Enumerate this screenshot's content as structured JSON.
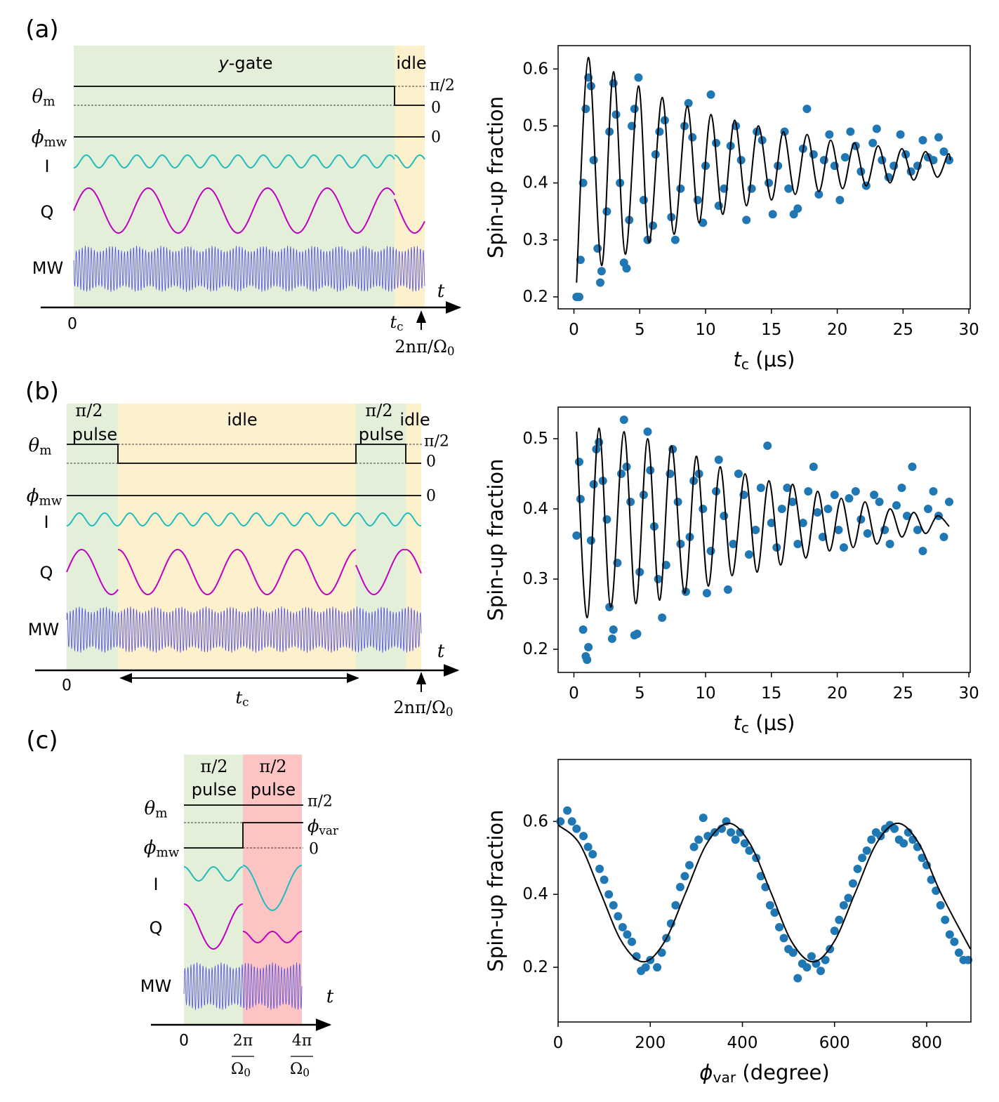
{
  "diagrams": [
    {
      "panel": "(a)",
      "gate": {
        "i": "y",
        "rest": "-gate"
      },
      "idle": "idle",
      "theta": {
        "base": "θ",
        "sub": "m"
      },
      "phi": {
        "base": "ϕ",
        "sub": "mw"
      },
      "I": "I",
      "Q": "Q",
      "MW": "MW",
      "t": "t",
      "zero": "0",
      "tc": {
        "base": "t",
        "sub": "c"
      },
      "end": {
        "base": "2nπ/Ω",
        "sub": "0"
      },
      "right": [
        "π/2",
        "0",
        "0"
      ]
    },
    {
      "panel": "(b)",
      "regions": [
        [
          "π/2",
          "pulse"
        ],
        [
          "idle"
        ],
        [
          "π/2",
          "pulse"
        ],
        [
          "idle"
        ]
      ],
      "theta": {
        "base": "θ",
        "sub": "m"
      },
      "phi": {
        "base": "ϕ",
        "sub": "mw"
      },
      "I": "I",
      "Q": "Q",
      "MW": "MW",
      "t": "t",
      "zero": "0",
      "tc": {
        "base": "t",
        "sub": "c"
      },
      "end": {
        "base": "2nπ/Ω",
        "sub": "0"
      },
      "right": [
        "π/2",
        "0",
        "0"
      ]
    },
    {
      "panel": "(c)",
      "regions": [
        [
          "π/2",
          "pulse"
        ],
        [
          "π/2",
          "pulse"
        ]
      ],
      "theta": {
        "base": "θ",
        "sub": "m"
      },
      "phi": {
        "base": "ϕ",
        "sub": "mw"
      },
      "I": "I",
      "Q": "Q",
      "MW": "MW",
      "t": "t",
      "ticks": [
        "0",
        {
          "num": "2π",
          "den": {
            "base": "Ω",
            "sub": "0"
          }
        },
        {
          "num": "4π",
          "den": {
            "base": "Ω",
            "sub": "0"
          }
        }
      ],
      "right": [
        "π/2",
        {
          "base": "ϕ",
          "sub": "var"
        },
        "0"
      ]
    }
  ],
  "chart_data": [
    {
      "type": "scatter",
      "ylabel": "Spin-up fraction",
      "xlabel": {
        "base": "t",
        "sub": "c",
        "rest": " (μs)"
      },
      "xlim": [
        -1.2,
        30.1
      ],
      "xticks": [
        0,
        5,
        10,
        15,
        20,
        25,
        30
      ],
      "ylim": [
        0.179,
        0.641
      ],
      "yticks": [
        0.2,
        0.3,
        0.4,
        0.5,
        0.6
      ],
      "points": {
        "color": "#1f77b4",
        "x": [
          0.2,
          0.4,
          0.5,
          0.7,
          0.9,
          1.1,
          1.3,
          1.5,
          1.8,
          2.1,
          2.0,
          2.5,
          2.7,
          3.0,
          3.2,
          3.5,
          3.8,
          4.0,
          4.2,
          4.4,
          4.6,
          4.9,
          5.3,
          5.6,
          6.0,
          6.2,
          6.5,
          6.9,
          7.4,
          7.7,
          8.1,
          8.4,
          8.7,
          9.0,
          9.4,
          9.8,
          10.0,
          10.4,
          10.8,
          11.0,
          11.4,
          11.9,
          12.3,
          12.7,
          13.1,
          13.5,
          13.9,
          14.3,
          14.8,
          15.1,
          15.5,
          16.0,
          16.3,
          16.7,
          17.0,
          17.4,
          17.7,
          18.2,
          18.6,
          19.0,
          19.4,
          19.8,
          20.2,
          20.6,
          21.0,
          21.4,
          21.8,
          22.2,
          22.7,
          23.0,
          23.4,
          23.9,
          24.3,
          24.8,
          25.2,
          25.6,
          26.1,
          26.5,
          26.9,
          27.3,
          27.7,
          28.1,
          28.5
        ],
        "y": [
          0.2,
          0.2,
          0.265,
          0.4,
          0.53,
          0.585,
          0.57,
          0.44,
          0.285,
          0.245,
          0.225,
          0.35,
          0.49,
          0.575,
          0.52,
          0.4,
          0.26,
          0.25,
          0.335,
          0.5,
          0.53,
          0.585,
          0.37,
          0.3,
          0.325,
          0.45,
          0.49,
          0.51,
          0.34,
          0.3,
          0.39,
          0.5,
          0.54,
          0.48,
          0.37,
          0.33,
          0.43,
          0.555,
          0.47,
          0.36,
          0.39,
          0.465,
          0.5,
          0.44,
          0.335,
          0.39,
          0.49,
          0.475,
          0.4,
          0.345,
          0.43,
          0.49,
          0.39,
          0.345,
          0.355,
          0.46,
          0.53,
          0.45,
          0.38,
          0.44,
          0.485,
          0.43,
          0.37,
          0.445,
          0.49,
          0.465,
          0.42,
          0.395,
          0.47,
          0.495,
          0.44,
          0.41,
          0.43,
          0.485,
          0.45,
          0.42,
          0.43,
          0.475,
          0.445,
          0.44,
          0.48,
          0.455,
          0.44
        ]
      },
      "fit": {
        "color": "#000000",
        "x": [
          0.2,
          1.1,
          2.1,
          3.0,
          3.9,
          4.9,
          5.7,
          6.7,
          7.6,
          8.6,
          9.5,
          10.4,
          11.3,
          12.2,
          13.1,
          14.0,
          15.0,
          15.9,
          16.8,
          17.7,
          18.6,
          19.5,
          20.4,
          21.3,
          22.2,
          23.1,
          24.0,
          24.9,
          25.8,
          26.7,
          27.6,
          28.4,
          28.6
        ],
        "y": [
          0.225,
          0.62,
          0.255,
          0.595,
          0.275,
          0.57,
          0.295,
          0.55,
          0.31,
          0.535,
          0.33,
          0.52,
          0.345,
          0.51,
          0.36,
          0.5,
          0.37,
          0.49,
          0.38,
          0.485,
          0.385,
          0.475,
          0.39,
          0.47,
          0.395,
          0.465,
          0.4,
          0.46,
          0.405,
          0.455,
          0.41,
          0.45,
          0.44
        ]
      }
    },
    {
      "type": "scatter",
      "ylabel": "Spin-up fraction",
      "xlabel": {
        "base": "t",
        "sub": "c",
        "rest": " (μs)"
      },
      "xlim": [
        -1.2,
        30.1
      ],
      "xticks": [
        0,
        5,
        10,
        15,
        20,
        25,
        30
      ],
      "ylim": [
        0.167,
        0.545
      ],
      "yticks": [
        0.2,
        0.3,
        0.4,
        0.5
      ],
      "points": {
        "color": "#1f77b4",
        "x": [
          0.2,
          0.4,
          0.5,
          0.7,
          0.9,
          1.0,
          1.1,
          1.3,
          1.5,
          1.7,
          1.9,
          2.2,
          2.5,
          2.7,
          2.9,
          3.0,
          3.3,
          3.6,
          3.8,
          4.0,
          4.3,
          4.6,
          4.8,
          5.0,
          5.3,
          5.6,
          5.8,
          6.1,
          6.4,
          6.7,
          7.0,
          7.3,
          7.5,
          7.9,
          8.1,
          8.5,
          8.8,
          9.1,
          9.5,
          9.8,
          10.1,
          10.4,
          10.8,
          11.0,
          11.4,
          11.7,
          12.1,
          12.5,
          12.9,
          13.3,
          13.8,
          14.2,
          14.7,
          15.0,
          15.4,
          15.8,
          16.2,
          16.6,
          17.0,
          17.4,
          17.8,
          18.2,
          18.5,
          18.9,
          19.3,
          19.8,
          20.1,
          20.5,
          20.9,
          21.4,
          21.8,
          22.3,
          22.8,
          23.2,
          23.6,
          24.0,
          24.5,
          24.9,
          25.3,
          25.7,
          26.1,
          26.5,
          26.9,
          27.3,
          27.7,
          28.1,
          28.5
        ],
        "y": [
          0.362,
          0.467,
          0.414,
          0.228,
          0.19,
          0.185,
          0.203,
          0.355,
          0.435,
          0.485,
          0.495,
          0.44,
          0.385,
          0.26,
          0.215,
          0.228,
          0.323,
          0.45,
          0.527,
          0.46,
          0.41,
          0.22,
          0.222,
          0.31,
          0.42,
          0.51,
          0.455,
          0.375,
          0.3,
          0.245,
          0.32,
          0.45,
          0.485,
          0.41,
          0.35,
          0.282,
          0.36,
          0.44,
          0.45,
          0.4,
          0.28,
          0.34,
          0.425,
          0.47,
          0.39,
          0.285,
          0.35,
          0.45,
          0.42,
          0.335,
          0.37,
          0.43,
          0.49,
          0.38,
          0.345,
          0.4,
          0.43,
          0.41,
          0.35,
          0.38,
          0.425,
          0.46,
          0.395,
          0.36,
          0.4,
          0.42,
          0.37,
          0.345,
          0.415,
          0.425,
          0.385,
          0.365,
          0.42,
          0.41,
          0.37,
          0.35,
          0.405,
          0.43,
          0.39,
          0.46,
          0.37,
          0.34,
          0.4,
          0.425,
          0.39,
          0.36,
          0.41
        ]
      },
      "fit": {
        "color": "#000000",
        "x": [
          0.2,
          1.0,
          1.9,
          2.8,
          3.8,
          4.7,
          5.6,
          6.5,
          7.4,
          8.4,
          9.3,
          10.2,
          11.1,
          12.0,
          13.0,
          13.9,
          14.8,
          15.7,
          16.6,
          17.6,
          18.5,
          19.4,
          20.3,
          21.2,
          22.1,
          23.0,
          24.0,
          24.9,
          25.8,
          26.7,
          27.6,
          28.5
        ],
        "y": [
          0.51,
          0.245,
          0.515,
          0.26,
          0.51,
          0.265,
          0.5,
          0.27,
          0.49,
          0.28,
          0.475,
          0.29,
          0.46,
          0.305,
          0.45,
          0.31,
          0.44,
          0.32,
          0.435,
          0.33,
          0.425,
          0.34,
          0.415,
          0.345,
          0.41,
          0.35,
          0.4,
          0.36,
          0.395,
          0.365,
          0.39,
          0.375
        ]
      }
    },
    {
      "type": "scatter",
      "ylabel": "Spin-up fraction",
      "xlabel": {
        "base": "ϕ",
        "sub": "var",
        "rest": " (degree)"
      },
      "xlim": [
        0,
        896
      ],
      "xticks": [
        0,
        200,
        400,
        600,
        800
      ],
      "ylim": [
        0.05,
        0.77
      ],
      "yticks": [
        0.2,
        0.4,
        0.6
      ],
      "points": {
        "color": "#1f77b4",
        "x": [
          5,
          20,
          30,
          40,
          55,
          65,
          75,
          90,
          100,
          110,
          120,
          130,
          140,
          150,
          160,
          170,
          180,
          190,
          200,
          215,
          225,
          235,
          245,
          255,
          265,
          275,
          285,
          295,
          305,
          315,
          325,
          340,
          355,
          365,
          375,
          385,
          395,
          405,
          415,
          430,
          440,
          450,
          460,
          470,
          480,
          490,
          500,
          510,
          520,
          530,
          540,
          550,
          560,
          570,
          580,
          590,
          600,
          610,
          620,
          630,
          640,
          650,
          660,
          670,
          680,
          690,
          700,
          710,
          720,
          730,
          740,
          750,
          760,
          770,
          780,
          790,
          800,
          810,
          820,
          830,
          840,
          850,
          860,
          870,
          880,
          890
        ],
        "y": [
          0.6,
          0.63,
          0.6,
          0.58,
          0.56,
          0.53,
          0.51,
          0.47,
          0.44,
          0.4,
          0.37,
          0.34,
          0.31,
          0.29,
          0.27,
          0.23,
          0.19,
          0.2,
          0.22,
          0.2,
          0.24,
          0.28,
          0.32,
          0.37,
          0.42,
          0.45,
          0.48,
          0.53,
          0.55,
          0.61,
          0.56,
          0.57,
          0.58,
          0.6,
          0.57,
          0.55,
          0.57,
          0.54,
          0.52,
          0.5,
          0.45,
          0.42,
          0.37,
          0.35,
          0.31,
          0.28,
          0.25,
          0.24,
          0.17,
          0.21,
          0.2,
          0.23,
          0.21,
          0.19,
          0.22,
          0.25,
          0.3,
          0.33,
          0.37,
          0.39,
          0.43,
          0.47,
          0.5,
          0.52,
          0.55,
          0.57,
          0.56,
          0.58,
          0.59,
          0.58,
          0.55,
          0.54,
          0.57,
          0.55,
          0.53,
          0.5,
          0.48,
          0.44,
          0.41,
          0.37,
          0.33,
          0.29,
          0.27,
          0.24,
          0.22,
          0.22
        ]
      },
      "fit": {
        "color": "#000000",
        "x": [
          0,
          46,
          92,
          138,
          185,
          231,
          277,
          323,
          370,
          416,
          462,
          507,
          553,
          599,
          645,
          691,
          737,
          783,
          830,
          895
        ],
        "y": [
          0.59,
          0.54,
          0.405,
          0.27,
          0.215,
          0.27,
          0.405,
          0.54,
          0.595,
          0.54,
          0.405,
          0.27,
          0.215,
          0.27,
          0.405,
          0.54,
          0.595,
          0.54,
          0.405,
          0.25
        ]
      }
    }
  ]
}
